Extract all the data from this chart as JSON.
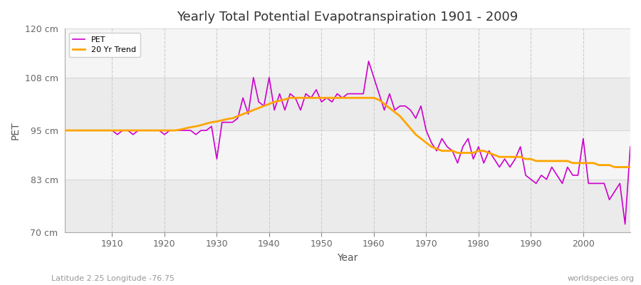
{
  "title": "Yearly Total Potential Evapotranspiration 1901 - 2009",
  "xlabel": "Year",
  "ylabel": "PET",
  "subtitle_left": "Latitude 2.25 Longitude -76.75",
  "subtitle_right": "worldspecies.org",
  "ylim": [
    70,
    120
  ],
  "xlim": [
    1901,
    2009
  ],
  "yticks": [
    70,
    83,
    95,
    108,
    120
  ],
  "ytick_labels": [
    "70 cm",
    "83 cm",
    "95 cm",
    "108 cm",
    "120 cm"
  ],
  "xticks": [
    1910,
    1920,
    1930,
    1940,
    1950,
    1960,
    1970,
    1980,
    1990,
    2000
  ],
  "pet_color": "#cc00cc",
  "trend_color": "#FFA500",
  "background_color": "#ffffff",
  "plot_bg_color": "#ffffff",
  "band_color_light": "#f0f0f0",
  "band_color_dark": "#e0e0e0",
  "grid_color": "#cccccc",
  "pet_linewidth": 1.2,
  "trend_linewidth": 2.0,
  "pet_data": {
    "years": [
      1901,
      1902,
      1903,
      1904,
      1905,
      1906,
      1907,
      1908,
      1909,
      1910,
      1911,
      1912,
      1913,
      1914,
      1915,
      1916,
      1917,
      1918,
      1919,
      1920,
      1921,
      1922,
      1923,
      1924,
      1925,
      1926,
      1927,
      1928,
      1929,
      1930,
      1931,
      1932,
      1933,
      1934,
      1935,
      1936,
      1937,
      1938,
      1939,
      1940,
      1941,
      1942,
      1943,
      1944,
      1945,
      1946,
      1947,
      1948,
      1949,
      1950,
      1951,
      1952,
      1953,
      1954,
      1955,
      1956,
      1957,
      1958,
      1959,
      1960,
      1961,
      1962,
      1963,
      1964,
      1965,
      1966,
      1967,
      1968,
      1969,
      1970,
      1971,
      1972,
      1973,
      1974,
      1975,
      1976,
      1977,
      1978,
      1979,
      1980,
      1981,
      1982,
      1983,
      1984,
      1985,
      1986,
      1987,
      1988,
      1989,
      1990,
      1991,
      1992,
      1993,
      1994,
      1995,
      1996,
      1997,
      1998,
      1999,
      2000,
      2001,
      2002,
      2003,
      2004,
      2005,
      2006,
      2007,
      2008,
      2009
    ],
    "values": [
      95,
      95,
      95,
      95,
      95,
      95,
      95,
      95,
      95,
      95,
      94,
      95,
      95,
      94,
      95,
      95,
      95,
      95,
      95,
      94,
      95,
      95,
      95,
      95,
      95,
      94,
      95,
      95,
      96,
      88,
      97,
      97,
      97,
      98,
      103,
      99,
      108,
      102,
      101,
      108,
      100,
      104,
      100,
      104,
      103,
      100,
      104,
      103,
      105,
      102,
      103,
      102,
      104,
      103,
      104,
      104,
      104,
      104,
      112,
      108,
      104,
      100,
      104,
      100,
      101,
      101,
      100,
      98,
      101,
      95,
      92,
      90,
      93,
      91,
      90,
      87,
      91,
      93,
      88,
      91,
      87,
      90,
      88,
      86,
      88,
      86,
      88,
      91,
      84,
      83,
      82,
      84,
      83,
      86,
      84,
      82,
      86,
      84,
      84,
      93,
      82,
      82,
      82,
      82,
      78,
      80,
      82,
      72,
      91
    ]
  },
  "trend_data": {
    "years": [
      1901,
      1902,
      1903,
      1904,
      1905,
      1906,
      1907,
      1908,
      1909,
      1910,
      1911,
      1912,
      1913,
      1914,
      1915,
      1916,
      1917,
      1918,
      1919,
      1920,
      1921,
      1922,
      1923,
      1924,
      1925,
      1926,
      1927,
      1928,
      1929,
      1930,
      1931,
      1932,
      1933,
      1934,
      1935,
      1936,
      1937,
      1938,
      1939,
      1940,
      1941,
      1942,
      1943,
      1944,
      1945,
      1946,
      1947,
      1948,
      1949,
      1950,
      1951,
      1952,
      1953,
      1954,
      1955,
      1956,
      1957,
      1958,
      1959,
      1960,
      1961,
      1962,
      1963,
      1964,
      1965,
      1966,
      1967,
      1968,
      1969,
      1970,
      1971,
      1972,
      1973,
      1974,
      1975,
      1976,
      1977,
      1978,
      1979,
      1980,
      1981,
      1982,
      1983,
      1984,
      1985,
      1986,
      1987,
      1988,
      1989,
      1990,
      1991,
      1992,
      1993,
      1994,
      1995,
      1996,
      1997,
      1998,
      1999,
      2000,
      2001,
      2002,
      2003,
      2004,
      2005,
      2006,
      2007,
      2008,
      2009
    ],
    "values": [
      95.0,
      95.0,
      95.0,
      95.0,
      95.0,
      95.0,
      95.0,
      95.0,
      95.0,
      95.0,
      95.0,
      95.0,
      95.0,
      95.0,
      95.0,
      95.0,
      95.0,
      95.0,
      95.0,
      95.0,
      95.0,
      95.0,
      95.2,
      95.5,
      95.8,
      96.0,
      96.3,
      96.7,
      97.0,
      97.2,
      97.5,
      97.8,
      98.0,
      98.5,
      99.0,
      99.5,
      100.0,
      100.5,
      101.0,
      101.5,
      102.0,
      102.3,
      102.6,
      103.0,
      103.0,
      103.0,
      103.0,
      103.0,
      103.0,
      103.0,
      103.0,
      103.0,
      103.0,
      103.0,
      103.0,
      103.0,
      103.0,
      103.0,
      103.0,
      103.0,
      102.5,
      101.5,
      100.5,
      99.5,
      98.5,
      97.0,
      95.5,
      94.0,
      93.0,
      92.0,
      91.0,
      90.5,
      90.0,
      90.0,
      90.0,
      89.5,
      89.5,
      89.5,
      89.5,
      90.0,
      90.0,
      89.5,
      89.0,
      88.5,
      88.5,
      88.5,
      88.5,
      88.5,
      88.0,
      88.0,
      87.5,
      87.5,
      87.5,
      87.5,
      87.5,
      87.5,
      87.5,
      87.0,
      87.0,
      87.0,
      87.0,
      87.0,
      86.5,
      86.5,
      86.5,
      86.0,
      86.0,
      86.0,
      86.0
    ]
  }
}
